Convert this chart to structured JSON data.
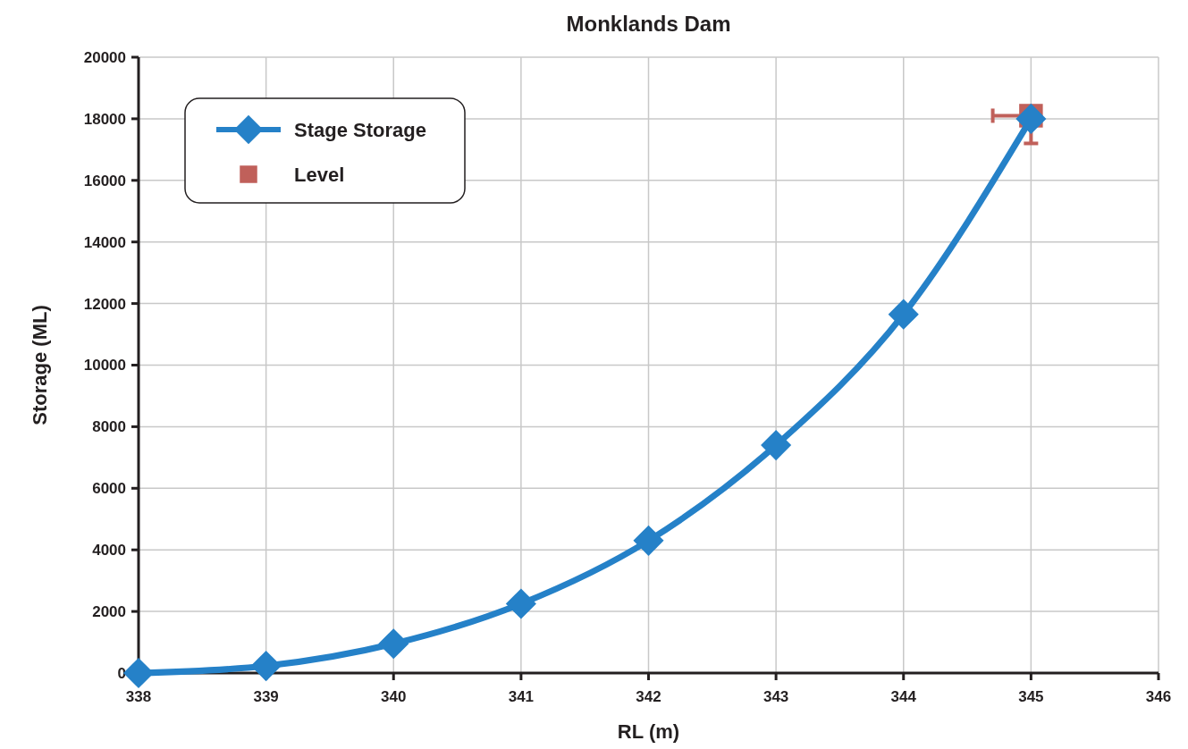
{
  "chart_data": {
    "type": "line",
    "title": "Monklands Dam",
    "xlabel": "RL (m)",
    "ylabel": "Storage (ML)",
    "xlim": [
      338,
      346
    ],
    "xticks": [
      338,
      339,
      340,
      341,
      342,
      343,
      344,
      345,
      346
    ],
    "ylim": [
      0,
      20000
    ],
    "yticks": [
      0,
      2000,
      4000,
      6000,
      8000,
      10000,
      12000,
      14000,
      16000,
      18000,
      20000
    ],
    "grid": true,
    "legend": "top left",
    "line_style": "solid",
    "series": [
      {
        "name": "Stage Storage",
        "color": "#2581c8",
        "marker": "diamond",
        "x": [
          338,
          339,
          340,
          341,
          342,
          343,
          344,
          345
        ],
        "values": [
          0,
          230,
          950,
          2250,
          4300,
          7400,
          11650,
          18000
        ]
      },
      {
        "name": "Level",
        "type": "scatter",
        "color": "#c0605a",
        "marker": "square",
        "x": [
          345
        ],
        "values": [
          18100
        ],
        "errors": [
          [
            17200,
            18100
          ]
        ],
        "xerrors": [
          [
            344.7,
            345
          ]
        ]
      }
    ]
  }
}
